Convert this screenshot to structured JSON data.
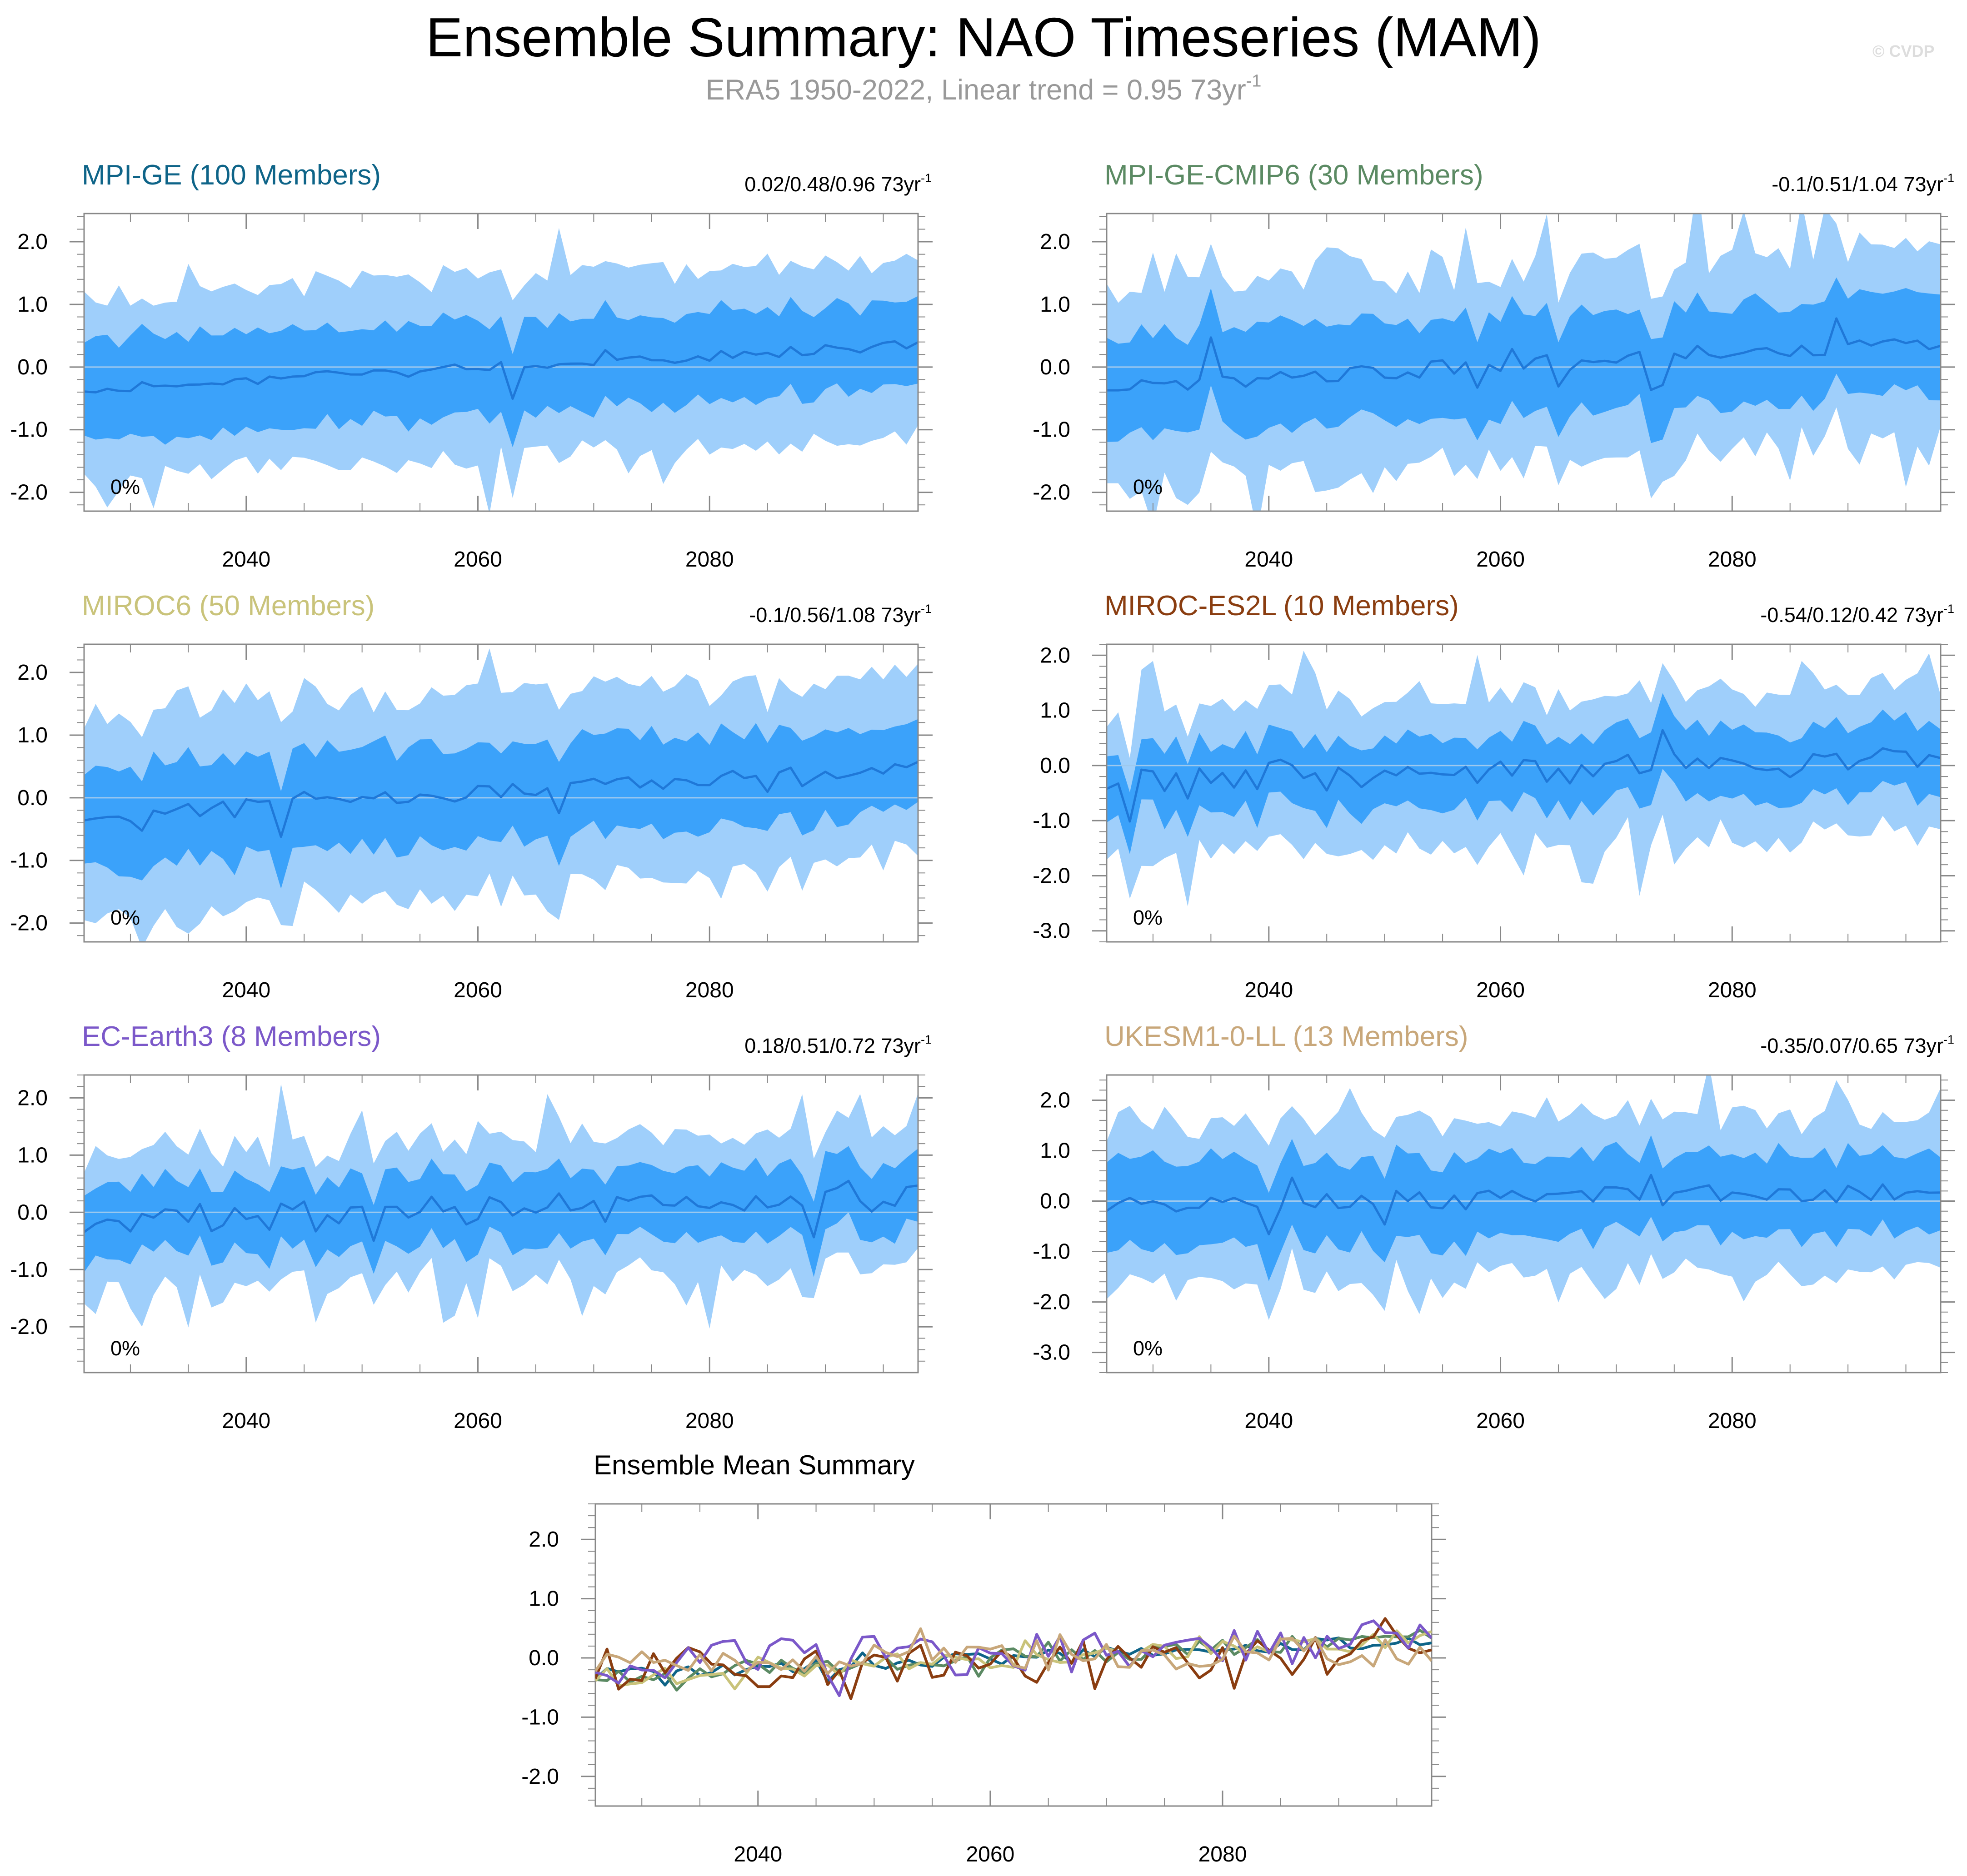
{
  "title": "Ensemble Summary: NAO Timeseries (MAM)",
  "subtitle": {
    "text": "ERA5 1950-2022, Linear trend = 0.95 73yr",
    "sup": "-1"
  },
  "credit": "© CVDP",
  "colors": {
    "outer_band": "#9fcffb",
    "inner_band": "#3ba2fa",
    "median_line": "#1f78d8",
    "zero_line": "#9ec9ee",
    "axis": "#888888"
  },
  "chart_data": [
    {
      "type": "area",
      "name": "MPI-GE",
      "title": "MPI-GE (100 Members)",
      "title_color": "#0e6488",
      "trend": {
        "text": "0.02/0.48/0.96 73yr",
        "sup": "-1"
      },
      "percent_label": "0%",
      "x_range": [
        2026,
        2098
      ],
      "xticks": [
        2040,
        2060,
        2080
      ],
      "xtick_labels": [
        "2040",
        "2060",
        "2080"
      ],
      "ylim": [
        -2.3,
        2.45
      ],
      "yticks": [
        -2,
        -1,
        0,
        1,
        2
      ],
      "ytick_labels": [
        "-2.0",
        "-1.0",
        "0.0",
        "1.0",
        "2.0"
      ],
      "seed": 11,
      "p_mid": [
        -0.35,
        0.35
      ],
      "p_in": [
        0.8,
        0.65
      ],
      "p_out": [
        1.5,
        1.35
      ],
      "noise_mid": 0.08,
      "noise_band": 0.2,
      "spikes": 0.05
    },
    {
      "type": "area",
      "name": "MPI-GE-CMIP6",
      "title": "MPI-GE-CMIP6 (30 Members)",
      "title_color": "#5b8a63",
      "trend": {
        "text": "-0.1/0.51/1.04 73yr",
        "sup": "-1"
      },
      "percent_label": "0%",
      "x_range": [
        2026,
        2098
      ],
      "xticks": [
        2040,
        2060,
        2080
      ],
      "xtick_labels": [
        "2040",
        "2060",
        "2080"
      ],
      "ylim": [
        -2.3,
        2.45
      ],
      "yticks": [
        -2,
        -1,
        0,
        1,
        2
      ],
      "ytick_labels": [
        "-2.0",
        "-1.0",
        "0.0",
        "1.0",
        "2.0"
      ],
      "seed": 23,
      "p_mid": [
        -0.3,
        0.4
      ],
      "p_in": [
        0.8,
        0.75
      ],
      "p_out": [
        1.6,
        1.5
      ],
      "noise_mid": 0.14,
      "noise_band": 0.3,
      "spikes": 0.12
    },
    {
      "type": "area",
      "name": "MIROC6",
      "title": "MIROC6 (50 Members)",
      "title_color": "#c9c37a",
      "trend": {
        "text": "-0.1/0.56/1.08 73yr",
        "sup": "-1"
      },
      "percent_label": "0%",
      "x_range": [
        2026,
        2098
      ],
      "xticks": [
        2040,
        2060,
        2080
      ],
      "xtick_labels": [
        "2040",
        "2060",
        "2080"
      ],
      "ylim": [
        -2.3,
        2.45
      ],
      "yticks": [
        -2,
        -1,
        0,
        1,
        2
      ],
      "ytick_labels": [
        "-2.0",
        "-1.0",
        "0.0",
        "1.0",
        "2.0"
      ],
      "seed": 37,
      "p_mid": [
        -0.3,
        0.5
      ],
      "p_in": [
        0.8,
        0.7
      ],
      "p_out": [
        1.7,
        1.4
      ],
      "noise_mid": 0.12,
      "noise_band": 0.25,
      "spikes": 0.08
    },
    {
      "type": "area",
      "name": "MIROC-ES2L",
      "title": "MIROC-ES2L (10 Members)",
      "title_color": "#8a3d10",
      "trend": {
        "text": "-0.54/0.12/0.42 73yr",
        "sup": "-1"
      },
      "percent_label": "0%",
      "x_range": [
        2026,
        2098
      ],
      "xticks": [
        2040,
        2060,
        2080
      ],
      "xtick_labels": [
        "2040",
        "2060",
        "2080"
      ],
      "ylim": [
        -3.2,
        2.2
      ],
      "yticks": [
        -3,
        -2,
        -1,
        0,
        1,
        2
      ],
      "ytick_labels": [
        "-3.0",
        "-2.0",
        "-1.0",
        "0.0",
        "1.0",
        "2.0"
      ],
      "seed": 49,
      "p_mid": [
        -0.3,
        0.1
      ],
      "p_in": [
        0.6,
        0.6
      ],
      "p_out": [
        1.3,
        1.3
      ],
      "noise_mid": 0.25,
      "noise_band": 0.35,
      "spikes": 0.18
    },
    {
      "type": "area",
      "name": "EC-Earth3",
      "title": "EC-Earth3 (8 Members)",
      "title_color": "#7b58c9",
      "trend": {
        "text": "0.18/0.51/0.72 73yr",
        "sup": "-1"
      },
      "percent_label": "0%",
      "x_range": [
        2026,
        2098
      ],
      "xticks": [
        2040,
        2060,
        2080
      ],
      "xtick_labels": [
        "2040",
        "2060",
        "2080"
      ],
      "ylim": [
        -2.8,
        2.4
      ],
      "yticks": [
        -2,
        -1,
        0,
        1,
        2
      ],
      "ytick_labels": [
        "-2.0",
        "-1.0",
        "0.0",
        "1.0",
        "2.0"
      ],
      "seed": 61,
      "p_mid": [
        -0.2,
        0.3
      ],
      "p_in": [
        0.6,
        0.6
      ],
      "p_out": [
        1.2,
        1.2
      ],
      "noise_mid": 0.3,
      "noise_band": 0.35,
      "spikes": 0.2
    },
    {
      "type": "area",
      "name": "UKESM1-0-LL",
      "title": "UKESM1-0-LL (13 Members)",
      "title_color": "#c8a77a",
      "trend": {
        "text": "-0.35/0.07/0.65 73yr",
        "sup": "-1"
      },
      "percent_label": "0%",
      "x_range": [
        2026,
        2098
      ],
      "xticks": [
        2040,
        2060,
        2080
      ],
      "xtick_labels": [
        "2040",
        "2060",
        "2080"
      ],
      "ylim": [
        -3.4,
        2.5
      ],
      "yticks": [
        -3,
        -2,
        -1,
        0,
        1,
        2
      ],
      "ytick_labels": [
        "-3.0",
        "-2.0",
        "-1.0",
        "0.0",
        "1.0",
        "2.0"
      ],
      "seed": 73,
      "p_mid": [
        -0.1,
        0.2
      ],
      "p_in": [
        0.85,
        0.75
      ],
      "p_out": [
        1.6,
        1.5
      ],
      "noise_mid": 0.2,
      "noise_band": 0.3,
      "spikes": 0.15
    },
    {
      "type": "line",
      "name": "Ensemble Mean",
      "title": "Ensemble Mean Summary",
      "x_range": [
        2026,
        2098
      ],
      "xticks": [
        2040,
        2060,
        2080
      ],
      "xtick_labels": [
        "2040",
        "2060",
        "2080"
      ],
      "ylim": [
        -2.5,
        2.6
      ],
      "yticks": [
        -2,
        -1,
        0,
        1,
        2
      ],
      "ytick_labels": [
        "-2.0",
        "-1.0",
        "0.0",
        "1.0",
        "2.0"
      ],
      "series": [
        {
          "name": "MPI-GE",
          "color": "#0e6488",
          "seed": 101,
          "start": -0.3,
          "end": 0.3,
          "amp": 0.12
        },
        {
          "name": "MPI-GE-CMIP6",
          "color": "#5b8a63",
          "seed": 113,
          "start": -0.3,
          "end": 0.35,
          "amp": 0.15
        },
        {
          "name": "MIROC6",
          "color": "#c9c37a",
          "seed": 127,
          "start": -0.3,
          "end": 0.35,
          "amp": 0.2
        },
        {
          "name": "MIROC-ES2L",
          "color": "#8a3d10",
          "seed": 139,
          "start": -0.2,
          "end": 0.05,
          "amp": 0.35
        },
        {
          "name": "EC-Earth3",
          "color": "#7b58c9",
          "seed": 151,
          "start": -0.1,
          "end": 0.25,
          "amp": 0.35
        },
        {
          "name": "UKESM1-0-LL",
          "color": "#c8a77a",
          "seed": 163,
          "start": -0.05,
          "end": 0.15,
          "amp": 0.28
        }
      ]
    }
  ]
}
